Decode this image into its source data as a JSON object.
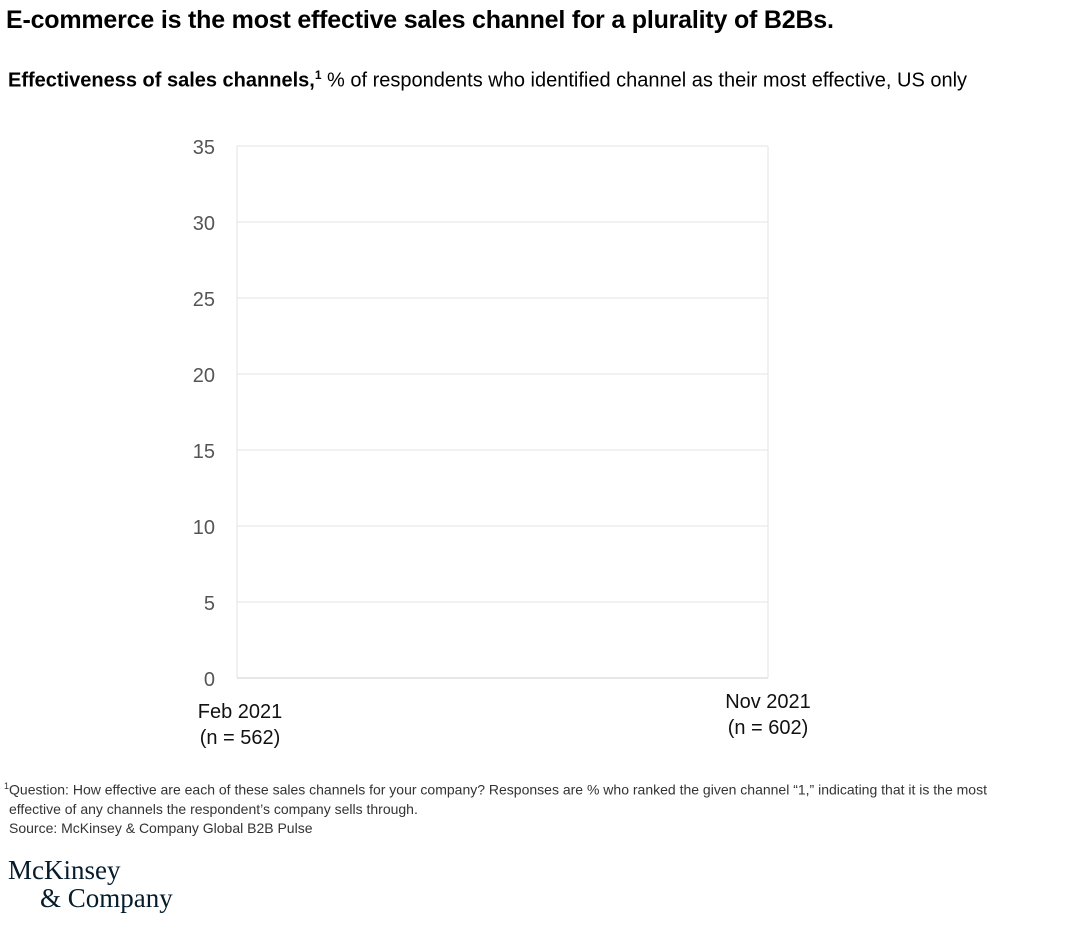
{
  "title": "E-commerce is the most effective sales channel for a plurality of B2Bs.",
  "subtitle": {
    "bold": "Effectiveness of sales channels,",
    "footnote_marker": "1",
    "rest": " % of respondents who identified channel as their most effective, US only"
  },
  "chart_data": {
    "type": "line",
    "title": "",
    "ylim": [
      0,
      35
    ],
    "yticks": [
      "0",
      "5",
      "10",
      "15",
      "20",
      "25",
      "30",
      "35"
    ],
    "grid": true,
    "categories": [
      {
        "line1": "Feb 2021",
        "line2": "(n = 562)"
      },
      {
        "line1": "Nov 2021",
        "line2": "(n = 602)"
      }
    ],
    "series": []
  },
  "footnote": {
    "marker": "1",
    "line1": "Question: How effective are each of these sales channels for your company? Responses are % who ranked the given channel “1,” indicating that it is the most",
    "line2": "effective of any channels the respondent’s company sells through.",
    "source": "Source: McKinsey & Company Global B2B Pulse"
  },
  "logo": {
    "line1": "McKinsey",
    "line2": "& Company"
  },
  "colors": {
    "grid": "#e3e3e3",
    "tick_text": "#555555",
    "logo": "#051c2c"
  }
}
